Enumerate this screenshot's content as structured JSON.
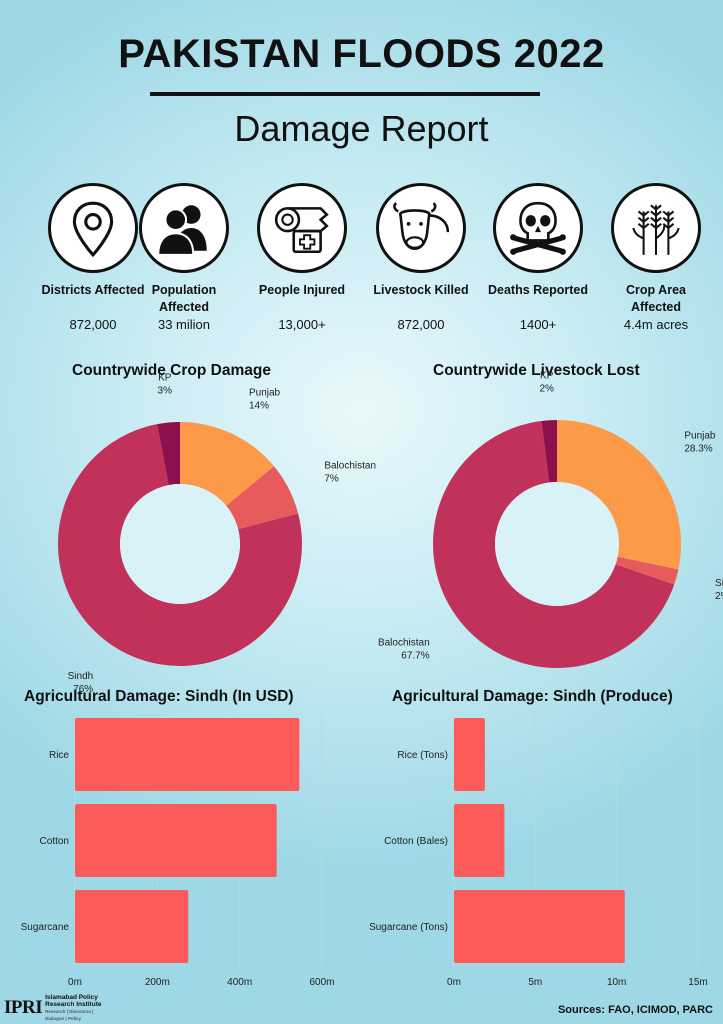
{
  "header": {
    "title": "PAKISTAN FLOODS 2022",
    "subtitle": "Damage Report"
  },
  "stats": [
    {
      "label": "Districts Affected",
      "value": "872,000",
      "icon": "location-pin-icon"
    },
    {
      "label": "Population Affected",
      "value": "33 milion",
      "icon": "people-icon"
    },
    {
      "label": "People Injured",
      "value": "13,000+",
      "icon": "bandage-icon"
    },
    {
      "label": "Livestock Killed",
      "value": "872,000",
      "icon": "cow-icon"
    },
    {
      "label": "Deaths Reported",
      "value": "1400+",
      "icon": "skull-icon"
    },
    {
      "label": "Crop Area Affected",
      "value": "4.4m acres",
      "icon": "wheat-icon"
    }
  ],
  "chart_data": [
    {
      "type": "pie",
      "variant": "donut",
      "title": "Countrywide Crop Damage",
      "slices": [
        {
          "name": "Punjab",
          "label": "14%",
          "value": 14,
          "color": "#fd9a4a"
        },
        {
          "name": "Balochistan",
          "label": "7%",
          "value": 7,
          "color": "#e75b5c"
        },
        {
          "name": "Sindh",
          "label": "76%",
          "value": 76,
          "color": "#c0325a"
        },
        {
          "name": "KP",
          "label": "3%",
          "value": 3,
          "color": "#8e0f4d"
        }
      ]
    },
    {
      "type": "pie",
      "variant": "donut",
      "title": "Countrywide Livestock Lost",
      "slices": [
        {
          "name": "Punjab",
          "label": "28.3%",
          "value": 28.3,
          "color": "#fd9a4a"
        },
        {
          "name": "Sindh",
          "label": "2%",
          "value": 2,
          "color": "#e75b5c"
        },
        {
          "name": "Balochistan",
          "label": "67.7%",
          "value": 67.7,
          "color": "#c0325a"
        },
        {
          "name": "KP",
          "label": "2%",
          "value": 2,
          "color": "#8e0f4d"
        }
      ]
    },
    {
      "type": "bar",
      "orientation": "horizontal",
      "title": "Agricultural Damage: Sindh (In USD)",
      "categories": [
        "Rice",
        "Cotton",
        "Sugarcane"
      ],
      "values": [
        545,
        490,
        275
      ],
      "xlim": [
        0,
        600
      ],
      "ticks": [
        0,
        200,
        400,
        600
      ],
      "tick_labels": [
        "0m",
        "200m",
        "400m",
        "600m"
      ],
      "grid": true,
      "color": "#fd5a5a"
    },
    {
      "type": "bar",
      "orientation": "horizontal",
      "title": "Agricultural Damage: Sindh (Produce)",
      "categories": [
        "Rice (Tons)",
        "Cotton (Bales)",
        "Sugarcane (Tons)"
      ],
      "values": [
        1.9,
        3.1,
        10.5
      ],
      "xlim": [
        0,
        15
      ],
      "ticks": [
        0,
        5,
        10,
        15
      ],
      "tick_labels": [
        "0m",
        "5m",
        "10m",
        "15m"
      ],
      "grid": true,
      "color": "#fd5a5a"
    }
  ],
  "footer": {
    "logo_text": "IPRI",
    "institute": "Islamabad Policy Research Institute",
    "tagline": "Research | Discourse | Dialogue | Policy",
    "sources": "Sources: FAO, ICIMOD, PARC"
  }
}
